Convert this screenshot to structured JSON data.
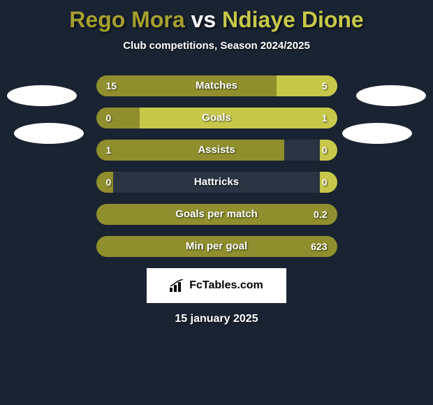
{
  "background_color": "#1a2332",
  "title": {
    "player1": "Rego Mora",
    "vs": "vs",
    "player2": "Ndiaye Dione",
    "player1_color": "#a5a02f",
    "vs_color": "#ffffff",
    "player2_color": "#c7c84a",
    "fontsize": 32
  },
  "subtitle": {
    "text": "Club competitions, Season 2024/2025",
    "fontsize": 15
  },
  "colors": {
    "left_fill": "#8f8f2e",
    "right_fill": "#c7c84a",
    "bar_bg": "#2a3442",
    "text": "#ffffff"
  },
  "stats": [
    {
      "label": "Matches",
      "left_val": "15",
      "right_val": "5",
      "left_pct": 75,
      "right_pct": 25
    },
    {
      "label": "Goals",
      "left_val": "0",
      "right_val": "1",
      "left_pct": 18,
      "right_pct": 82
    },
    {
      "label": "Assists",
      "left_val": "1",
      "right_val": "0",
      "left_pct": 78,
      "right_pct": 7
    },
    {
      "label": "Hattricks",
      "left_val": "0",
      "right_val": "0",
      "left_pct": 7,
      "right_pct": 7
    },
    {
      "label": "Goals per match",
      "left_val": "",
      "right_val": "0.2",
      "left_pct": 100,
      "right_pct": 0
    },
    {
      "label": "Min per goal",
      "left_val": "",
      "right_val": "623",
      "left_pct": 100,
      "right_pct": 0
    }
  ],
  "logo": {
    "text": "FcTables.com"
  },
  "date": {
    "text": "15 january 2025"
  }
}
